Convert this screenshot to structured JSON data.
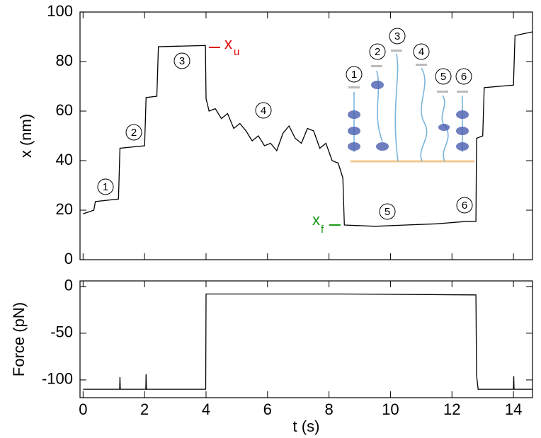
{
  "chart_data": [
    {
      "type": "line",
      "ylabel": "x (nm)",
      "x": [
        0,
        0.35,
        0.4,
        1.15,
        1.2,
        2.0,
        2.05,
        2.4,
        2.45,
        3.98,
        4.0,
        4.1,
        4.3,
        4.5,
        4.7,
        4.9,
        5.1,
        5.3,
        5.5,
        5.7,
        5.9,
        6.1,
        6.3,
        6.5,
        6.7,
        6.9,
        7.1,
        7.3,
        7.5,
        7.7,
        7.9,
        8.1,
        8.3,
        8.45,
        8.5,
        9.5,
        10.5,
        11.5,
        12.5,
        12.78,
        12.8,
        13.0,
        13.05,
        14.0,
        14.05,
        14.62
      ],
      "series": [
        {
          "color": "#000000",
          "values": [
            18.5,
            20,
            23.5,
            24.5,
            45,
            46,
            65.5,
            66,
            86,
            86.5,
            65,
            60,
            61,
            57,
            59,
            53,
            55,
            52,
            48,
            50,
            46,
            47,
            44,
            51,
            54,
            49,
            47,
            53,
            52,
            45,
            47,
            40,
            39,
            33,
            14,
            13.5,
            14,
            14.5,
            15.5,
            15.5,
            49,
            50,
            69.5,
            70.5,
            90.5,
            92
          ]
        }
      ],
      "xlim": [
        -0.1,
        14.62
      ],
      "xticks": [
        0,
        2,
        4,
        6,
        8,
        10,
        12,
        14
      ],
      "ylim": [
        0,
        100
      ],
      "yticks": [
        0,
        20,
        40,
        60,
        80,
        100
      ],
      "annotations": [
        "1",
        "2",
        "3",
        "4",
        "5",
        "6"
      ],
      "markers": [
        {
          "label": "x",
          "subscript": "u",
          "color": "#e00000"
        },
        {
          "label": "x",
          "subscript": "f",
          "color": "#1a9a1a"
        }
      ]
    },
    {
      "type": "line",
      "xlabel": "t (s)",
      "ylabel": "Force (pN)",
      "x": [
        0,
        1.19,
        1.2,
        1.21,
        2.04,
        2.05,
        2.06,
        3.99,
        4.0,
        8.5,
        12.78,
        12.8,
        12.85,
        14.0,
        14.01,
        14.02,
        14.62
      ],
      "series": [
        {
          "color": "#000000",
          "values": [
            -110,
            -110,
            -97,
            -110,
            -110,
            -94,
            -110,
            -110,
            -8,
            -8,
            -9,
            -95,
            -110,
            -110,
            -96,
            -110,
            -110
          ]
        }
      ],
      "xlim": [
        -0.1,
        14.62
      ],
      "xticks": [
        0,
        2,
        4,
        6,
        8,
        10,
        12,
        14
      ],
      "ylim": [
        -119,
        6
      ],
      "yticks": [
        0,
        -50,
        -100
      ]
    }
  ]
}
